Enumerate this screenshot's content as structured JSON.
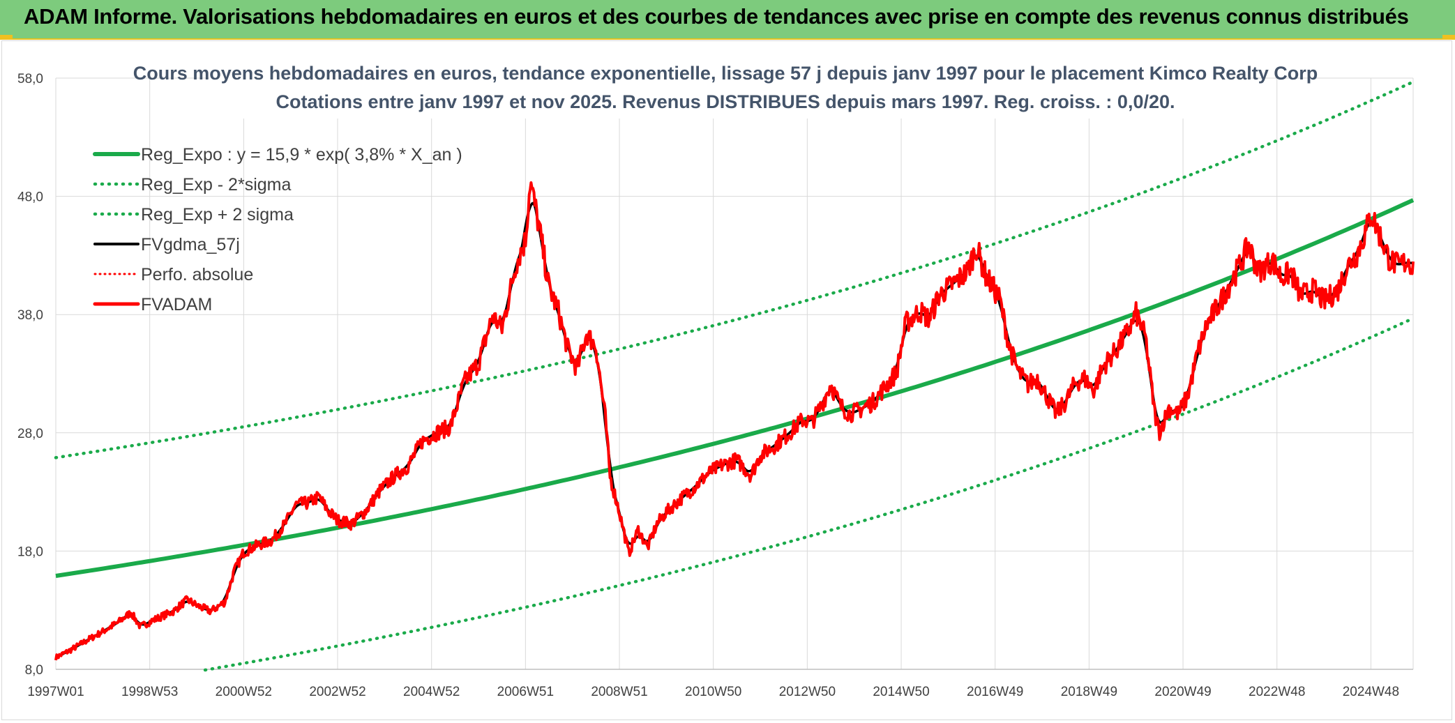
{
  "page": {
    "banner_title": "ADAM Informe. Valorisations hebdomadaires en euros et des courbes de tendances avec prise en compte des revenus connus distribués"
  },
  "colors": {
    "banner": "#7dcb7d",
    "trend": "#1aaa4a",
    "price": "#ff0000",
    "smooth": "#000000"
  },
  "chart_data": {
    "type": "line",
    "title": "Cours moyens hebdomadaires en euros, tendance exponentielle, lissage 57 j depuis janv 1997 pour le placement Kimco Realty Corp",
    "subtitle": "Cotations entre janv 1997 et nov 2025. Revenus DISTRIBUES depuis mars 1997. Reg. croiss. : 0,0/20.",
    "xlabel": "",
    "ylabel": "",
    "xlim": [
      1997.0,
      2025.9
    ],
    "ylim": [
      8.0,
      58.0
    ],
    "y_ticks": [
      "8,0",
      "18,0",
      "28,0",
      "38,0",
      "48,0",
      "58,0"
    ],
    "x_ticks": [
      {
        "label": "1997W01",
        "t": 1997.0
      },
      {
        "label": "1998W53",
        "t": 1999.0
      },
      {
        "label": "2000W52",
        "t": 2001.0
      },
      {
        "label": "2002W52",
        "t": 2003.0
      },
      {
        "label": "2004W52",
        "t": 2005.0
      },
      {
        "label": "2006W51",
        "t": 2007.0
      },
      {
        "label": "2008W51",
        "t": 2009.0
      },
      {
        "label": "2010W50",
        "t": 2011.0
      },
      {
        "label": "2012W50",
        "t": 2013.0
      },
      {
        "label": "2014W50",
        "t": 2015.0
      },
      {
        "label": "2016W49",
        "t": 2017.0
      },
      {
        "label": "2018W49",
        "t": 2019.0
      },
      {
        "label": "2020W49",
        "t": 2021.0
      },
      {
        "label": "2022W48",
        "t": 2023.0
      },
      {
        "label": "2024W48",
        "t": 2025.0
      }
    ],
    "grid": true,
    "legend_position": "top-left",
    "regression": {
      "a": 15.9,
      "rate": 0.038,
      "two_sigma": 10.0
    },
    "series": [
      {
        "name": "Reg_Expo : y = 15,9 * exp( 3,8% *  X_an )",
        "key": "reg",
        "style": "solid-green"
      },
      {
        "name": "Reg_Exp - 2*sigma",
        "key": "low",
        "style": "dotted-green"
      },
      {
        "name": "Reg_Exp + 2 sigma",
        "key": "high",
        "style": "dotted-green"
      },
      {
        "name": "FVgdma_57j",
        "key": "smooth",
        "style": "solid-black"
      },
      {
        "name": "Perfo. absolue",
        "key": "perf",
        "style": "dotted-red"
      },
      {
        "name": "FVADAM",
        "key": "price",
        "style": "solid-red"
      }
    ],
    "price_points": [
      [
        1997.0,
        9.0
      ],
      [
        1997.3,
        9.6
      ],
      [
        1997.6,
        10.3
      ],
      [
        1998.0,
        11.2
      ],
      [
        1998.3,
        11.9
      ],
      [
        1998.6,
        12.8
      ],
      [
        1998.8,
        11.6
      ],
      [
        1999.1,
        12.2
      ],
      [
        1999.5,
        12.9
      ],
      [
        1999.8,
        13.9
      ],
      [
        2000.0,
        13.4
      ],
      [
        2000.3,
        12.9
      ],
      [
        2000.6,
        13.7
      ],
      [
        2000.8,
        16.3
      ],
      [
        2001.0,
        17.9
      ],
      [
        2001.3,
        18.5
      ],
      [
        2001.6,
        18.9
      ],
      [
        2001.9,
        20.4
      ],
      [
        2002.1,
        21.9
      ],
      [
        2002.4,
        22.1
      ],
      [
        2002.6,
        22.6
      ],
      [
        2002.8,
        21.4
      ],
      [
        2003.0,
        20.6
      ],
      [
        2003.3,
        20.3
      ],
      [
        2003.6,
        21.4
      ],
      [
        2003.9,
        23.1
      ],
      [
        2004.2,
        24.3
      ],
      [
        2004.5,
        25.2
      ],
      [
        2004.8,
        27.3
      ],
      [
        2005.1,
        28.0
      ],
      [
        2005.4,
        28.5
      ],
      [
        2005.7,
        32.3
      ],
      [
        2006.0,
        33.9
      ],
      [
        2006.3,
        37.9
      ],
      [
        2006.5,
        36.8
      ],
      [
        2006.8,
        42.3
      ],
      [
        2007.0,
        44.3
      ],
      [
        2007.1,
        49.3
      ],
      [
        2007.3,
        45.2
      ],
      [
        2007.5,
        40.3
      ],
      [
        2007.7,
        38.3
      ],
      [
        2007.9,
        35.1
      ],
      [
        2008.1,
        33.4
      ],
      [
        2008.3,
        36.4
      ],
      [
        2008.5,
        35.3
      ],
      [
        2008.7,
        29.3
      ],
      [
        2008.8,
        24.3
      ],
      [
        2009.0,
        21.3
      ],
      [
        2009.2,
        17.8
      ],
      [
        2009.4,
        19.8
      ],
      [
        2009.6,
        18.3
      ],
      [
        2009.8,
        20.3
      ],
      [
        2010.0,
        21.3
      ],
      [
        2010.3,
        22.4
      ],
      [
        2010.6,
        23.4
      ],
      [
        2010.9,
        24.6
      ],
      [
        2011.2,
        25.3
      ],
      [
        2011.5,
        25.7
      ],
      [
        2011.8,
        24.4
      ],
      [
        2012.0,
        26.1
      ],
      [
        2012.3,
        26.9
      ],
      [
        2012.6,
        27.9
      ],
      [
        2012.9,
        29.1
      ],
      [
        2013.1,
        28.9
      ],
      [
        2013.3,
        30.3
      ],
      [
        2013.5,
        32.1
      ],
      [
        2013.7,
        30.3
      ],
      [
        2013.9,
        29.6
      ],
      [
        2014.1,
        29.9
      ],
      [
        2014.4,
        30.6
      ],
      [
        2014.7,
        32.1
      ],
      [
        2014.9,
        33.1
      ],
      [
        2015.1,
        37.3
      ],
      [
        2015.4,
        38.3
      ],
      [
        2015.6,
        37.6
      ],
      [
        2015.8,
        39.6
      ],
      [
        2016.1,
        40.6
      ],
      [
        2016.4,
        41.6
      ],
      [
        2016.6,
        43.7
      ],
      [
        2016.8,
        41.3
      ],
      [
        2017.1,
        39.3
      ],
      [
        2017.3,
        35.3
      ],
      [
        2017.5,
        33.1
      ],
      [
        2017.7,
        32.1
      ],
      [
        2017.9,
        32.6
      ],
      [
        2018.1,
        31.1
      ],
      [
        2018.3,
        29.6
      ],
      [
        2018.5,
        30.6
      ],
      [
        2018.7,
        32.2
      ],
      [
        2018.9,
        32.6
      ],
      [
        2019.1,
        31.6
      ],
      [
        2019.3,
        33.6
      ],
      [
        2019.6,
        35.1
      ],
      [
        2019.9,
        37.1
      ],
      [
        2020.0,
        38.1
      ],
      [
        2020.2,
        36.1
      ],
      [
        2020.4,
        29.6
      ],
      [
        2020.5,
        28.1
      ],
      [
        2020.7,
        30.1
      ],
      [
        2020.9,
        29.6
      ],
      [
        2021.1,
        31.1
      ],
      [
        2021.3,
        34.6
      ],
      [
        2021.5,
        37.1
      ],
      [
        2021.8,
        39.1
      ],
      [
        2022.0,
        40.6
      ],
      [
        2022.2,
        42.1
      ],
      [
        2022.4,
        43.9
      ],
      [
        2022.6,
        41.6
      ],
      [
        2022.9,
        42.6
      ],
      [
        2023.1,
        41.1
      ],
      [
        2023.3,
        41.6
      ],
      [
        2023.5,
        39.6
      ],
      [
        2023.8,
        40.1
      ],
      [
        2024.0,
        39.1
      ],
      [
        2024.3,
        40.1
      ],
      [
        2024.5,
        42.1
      ],
      [
        2024.7,
        43.1
      ],
      [
        2024.9,
        45.1
      ],
      [
        2025.0,
        46.6
      ],
      [
        2025.2,
        44.6
      ],
      [
        2025.4,
        42.6
      ],
      [
        2025.6,
        42.1
      ],
      [
        2025.8,
        42.6
      ],
      [
        2025.9,
        42.0
      ]
    ]
  },
  "legend": {
    "items": [
      "Reg_Expo : y = 15,9 * exp( 3,8% *  X_an )",
      "Reg_Exp - 2*sigma",
      "Reg_Exp + 2 sigma",
      "FVgdma_57j",
      "Perfo. absolue",
      "FVADAM"
    ]
  }
}
